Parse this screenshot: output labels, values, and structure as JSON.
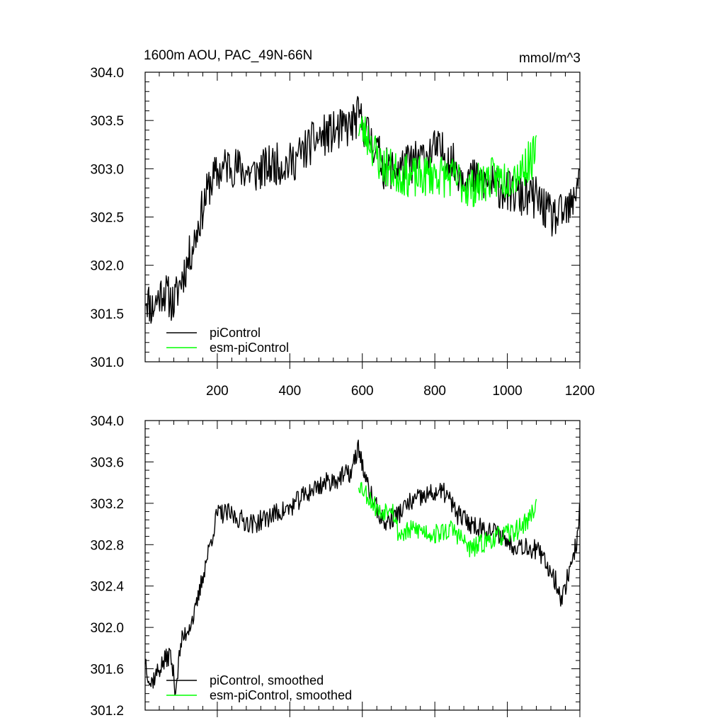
{
  "chart_data": [
    {
      "type": "line",
      "title": "1600m AOU, PAC_49N-66N",
      "units": "mmol/m^3",
      "xlim": [
        1,
        1200
      ],
      "ylim": [
        301.0,
        304.0
      ],
      "xticks": [
        200,
        400,
        600,
        800,
        1000,
        1200
      ],
      "yticks": [
        301.0,
        301.5,
        302.0,
        302.5,
        303.0,
        303.5,
        304.0
      ],
      "ytick_labels": [
        "301.0",
        "301.5",
        "302.0",
        "302.5",
        "303.0",
        "303.5",
        "304.0"
      ],
      "legend": [
        "piControl",
        "esm-piControl"
      ],
      "legend_position": "bottom-left",
      "series": [
        {
          "name": "piControl",
          "color": "#000000",
          "x_start": 1,
          "x_end": 1200,
          "anchors": [
            [
              1,
              301.7
            ],
            [
              20,
              301.55
            ],
            [
              50,
              301.75
            ],
            [
              80,
              301.6
            ],
            [
              100,
              301.85
            ],
            [
              120,
              302.05
            ],
            [
              140,
              302.3
            ],
            [
              160,
              302.6
            ],
            [
              180,
              302.85
            ],
            [
              200,
              302.95
            ],
            [
              230,
              303.05
            ],
            [
              260,
              303.0
            ],
            [
              300,
              302.95
            ],
            [
              330,
              303.0
            ],
            [
              360,
              303.05
            ],
            [
              400,
              303.05
            ],
            [
              430,
              303.15
            ],
            [
              470,
              303.3
            ],
            [
              500,
              303.35
            ],
            [
              540,
              303.4
            ],
            [
              570,
              303.45
            ],
            [
              590,
              303.55
            ],
            [
              610,
              303.4
            ],
            [
              640,
              303.2
            ],
            [
              660,
              303.0
            ],
            [
              700,
              303.0
            ],
            [
              730,
              303.05
            ],
            [
              760,
              303.1
            ],
            [
              800,
              303.2
            ],
            [
              830,
              303.15
            ],
            [
              860,
              303.0
            ],
            [
              900,
              302.9
            ],
            [
              940,
              302.85
            ],
            [
              980,
              302.8
            ],
            [
              1010,
              302.75
            ],
            [
              1040,
              302.7
            ],
            [
              1080,
              302.7
            ],
            [
              1100,
              302.6
            ],
            [
              1120,
              302.5
            ],
            [
              1140,
              302.5
            ],
            [
              1160,
              302.55
            ],
            [
              1180,
              302.6
            ],
            [
              1200,
              303.05
            ]
          ],
          "amplitude": 0.22,
          "seed": 11
        },
        {
          "name": "esm-piControl",
          "color": "#00ff00",
          "x_start": 590,
          "x_end": 1080,
          "anchors": [
            [
              590,
              303.45
            ],
            [
              620,
              303.3
            ],
            [
              650,
              303.05
            ],
            [
              700,
              302.95
            ],
            [
              750,
              302.9
            ],
            [
              800,
              302.95
            ],
            [
              850,
              302.9
            ],
            [
              900,
              302.8
            ],
            [
              950,
              302.9
            ],
            [
              1000,
              302.9
            ],
            [
              1040,
              303.0
            ],
            [
              1080,
              303.15
            ]
          ],
          "amplitude": 0.22,
          "seed": 23
        }
      ]
    },
    {
      "type": "line",
      "title": "",
      "xlim": [
        1,
        1200
      ],
      "ylim": [
        301.2,
        304.0
      ],
      "xticks": [
        200,
        400,
        600,
        800,
        1000,
        1200
      ],
      "yticks": [
        301.2,
        301.6,
        302.0,
        302.4,
        302.8,
        303.2,
        303.6,
        304.0
      ],
      "ytick_labels": [
        "301.2",
        "301.6",
        "302.0",
        "302.4",
        "302.8",
        "303.2",
        "303.6",
        "304.0"
      ],
      "legend": [
        "piControl, smoothed",
        "esm-piControl, smoothed"
      ],
      "legend_position": "bottom-left",
      "series": [
        {
          "name": "piControl, smoothed",
          "color": "#000000",
          "x_start": 1,
          "x_end": 1200,
          "anchors": [
            [
              1,
              301.7
            ],
            [
              15,
              301.45
            ],
            [
              40,
              301.6
            ],
            [
              70,
              301.75
            ],
            [
              85,
              301.4
            ],
            [
              100,
              301.85
            ],
            [
              120,
              302.0
            ],
            [
              140,
              302.15
            ],
            [
              160,
              302.5
            ],
            [
              180,
              302.8
            ],
            [
              200,
              303.1
            ],
            [
              230,
              303.1
            ],
            [
              260,
              303.05
            ],
            [
              300,
              303.0
            ],
            [
              330,
              303.05
            ],
            [
              360,
              303.1
            ],
            [
              400,
              303.15
            ],
            [
              430,
              303.25
            ],
            [
              470,
              303.35
            ],
            [
              500,
              303.4
            ],
            [
              540,
              303.45
            ],
            [
              570,
              303.5
            ],
            [
              590,
              303.75
            ],
            [
              610,
              303.4
            ],
            [
              640,
              303.15
            ],
            [
              660,
              303.0
            ],
            [
              700,
              303.1
            ],
            [
              730,
              303.2
            ],
            [
              760,
              303.25
            ],
            [
              800,
              303.3
            ],
            [
              830,
              303.3
            ],
            [
              860,
              303.1
            ],
            [
              900,
              303.0
            ],
            [
              940,
              302.95
            ],
            [
              980,
              302.9
            ],
            [
              1010,
              302.8
            ],
            [
              1040,
              302.8
            ],
            [
              1080,
              302.75
            ],
            [
              1100,
              302.65
            ],
            [
              1120,
              302.55
            ],
            [
              1140,
              302.4
            ],
            [
              1150,
              302.25
            ],
            [
              1170,
              302.55
            ],
            [
              1190,
              302.8
            ],
            [
              1200,
              303.15
            ]
          ],
          "amplitude": 0.1,
          "seed": 37
        },
        {
          "name": "esm-piControl, smoothed",
          "color": "#00ff00",
          "x_start": 590,
          "x_end": 1080,
          "anchors": [
            [
              590,
              303.4
            ],
            [
              620,
              303.25
            ],
            [
              650,
              303.1
            ],
            [
              680,
              303.2
            ],
            [
              700,
              302.9
            ],
            [
              750,
              302.95
            ],
            [
              800,
              302.9
            ],
            [
              850,
              302.95
            ],
            [
              900,
              302.75
            ],
            [
              950,
              302.85
            ],
            [
              1000,
              302.9
            ],
            [
              1030,
              302.95
            ],
            [
              1060,
              303.05
            ],
            [
              1080,
              303.2
            ]
          ],
          "amplitude": 0.1,
          "seed": 53
        }
      ]
    }
  ]
}
